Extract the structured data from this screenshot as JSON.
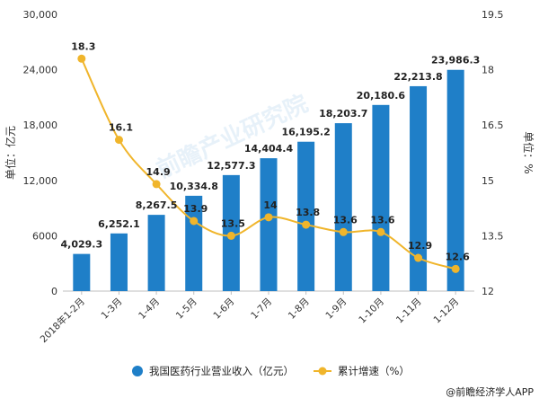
{
  "chart_data": {
    "type": "bar+line",
    "categories": [
      "2018年1-2月",
      "1-3月",
      "1-4月",
      "1-5月",
      "1-6月",
      "1-7月",
      "1-8月",
      "1-9月",
      "1-10月",
      "1-11月",
      "1-12月"
    ],
    "series": [
      {
        "name": "我国医药行业营业收入（亿元）",
        "type": "bar",
        "axis": "left",
        "color": "#1f7fc8",
        "values": [
          4029.3,
          6252.1,
          8267.5,
          10334.8,
          12577.3,
          14404.4,
          16195.2,
          18203.7,
          20180.6,
          22213.8,
          23986.3
        ],
        "labels": [
          "4,029.3",
          "6,252.1",
          "8,267.5",
          "10,334.8",
          "12,577.3",
          "14,404.4",
          "16,195.2",
          "18,203.7",
          "20,180.6",
          "22,213.8",
          "23,986.3"
        ]
      },
      {
        "name": "累计增速（%）",
        "type": "line",
        "axis": "right",
        "color": "#f0b52b",
        "values": [
          18.3,
          16.1,
          14.9,
          13.9,
          13.5,
          14,
          13.8,
          13.6,
          13.6,
          12.9,
          12.6
        ],
        "labels": [
          "18.3",
          "16.1",
          "14.9",
          "13.9",
          "13.5",
          "14",
          "13.8",
          "13.6",
          "13.6",
          "12.9",
          "12.6"
        ]
      }
    ],
    "y_left": {
      "label": "单位：亿元",
      "range": [
        0,
        30000
      ],
      "ticks": [
        0,
        6000,
        12000,
        18000,
        24000,
        30000
      ],
      "tick_labels": [
        "0",
        "6000",
        "12,000",
        "18,000",
        "24,000",
        "30,000"
      ]
    },
    "y_right": {
      "label": "单位：%",
      "range": [
        12,
        19.5
      ],
      "ticks": [
        12,
        13.5,
        15,
        16.5,
        18,
        19.5
      ],
      "tick_labels": [
        "12",
        "13.5",
        "15",
        "16.5",
        "18",
        "19.5"
      ]
    },
    "grid": false,
    "legend_position": "bottom"
  },
  "source_text": "@前瞻经济学人APP",
  "watermark_text": "前瞻产业研究院"
}
